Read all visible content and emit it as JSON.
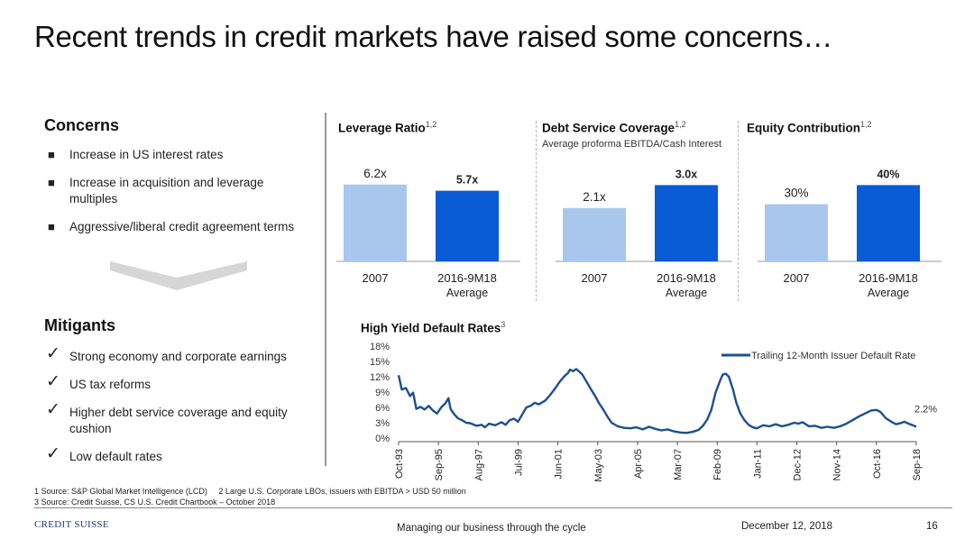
{
  "title": "Recent trends in credit markets have raised some concerns…",
  "concerns": {
    "heading": "Concerns",
    "items": [
      "Increase in US interest rates",
      "Increase in acquisition and leverage multiples",
      "Aggressive/liberal credit agreement terms"
    ]
  },
  "mitigants": {
    "heading": "Mitigants",
    "items": [
      "Strong economy and corporate earnings",
      "US tax reforms",
      "Higher debt service coverage and equity cushion",
      "Low default rates"
    ]
  },
  "colors": {
    "light_bar": "#a9c6ec",
    "dark_bar": "#0a5bd6",
    "line": "#1d4f91"
  },
  "chart_data": [
    {
      "type": "bar",
      "title": "Leverage Ratio",
      "title_sup": "1,2",
      "subtitle": "",
      "categories": [
        "2007",
        "2016-9M18"
      ],
      "category_sublabels": [
        "",
        "Average"
      ],
      "values": [
        6.2,
        5.7
      ],
      "value_labels": [
        "6.2x",
        "5.7x"
      ],
      "ylim": [
        0,
        8.0
      ]
    },
    {
      "type": "bar",
      "title": "Debt Service Coverage",
      "title_sup": "1,2",
      "subtitle": "Average proforma EBITDA/Cash Interest",
      "categories": [
        "2007",
        "2016-9M18"
      ],
      "category_sublabels": [
        "",
        "Average"
      ],
      "values": [
        2.1,
        3.0
      ],
      "value_labels": [
        "2.1x",
        "3.0x"
      ],
      "ylim": [
        0,
        3.9
      ]
    },
    {
      "type": "bar",
      "title": "Equity Contribution",
      "title_sup": "1,2",
      "subtitle": "",
      "categories": [
        "2007",
        "2016-9M18"
      ],
      "category_sublabels": [
        "",
        "Average"
      ],
      "values": [
        30,
        40
      ],
      "value_labels": [
        "30%",
        "40%"
      ],
      "ylim": [
        0,
        52
      ]
    },
    {
      "type": "line",
      "title": "High Yield Default Rates",
      "title_sup": "3",
      "yticks": [
        "0%",
        "3%",
        "6%",
        "9%",
        "12%",
        "15%",
        "18%"
      ],
      "ylim": [
        0,
        18
      ],
      "xticks": [
        "Oct-93",
        "Sep-95",
        "Aug-97",
        "Jul-99",
        "Jun-01",
        "May-03",
        "Apr-05",
        "Mar-07",
        "Feb-09",
        "Jan-11",
        "Dec-12",
        "Nov-14",
        "Oct-16",
        "Sep-18"
      ],
      "xlim": [
        1993.75,
        2018.67
      ],
      "series": [
        {
          "name": "Trailing 12-Month Issuer Default Rate",
          "end_label": "2.2%",
          "points": [
            [
              1993.75,
              12.3
            ],
            [
              1993.9,
              9.5
            ],
            [
              1994.1,
              9.8
            ],
            [
              1994.3,
              8.2
            ],
            [
              1994.45,
              8.9
            ],
            [
              1994.6,
              5.7
            ],
            [
              1994.8,
              6.1
            ],
            [
              1995.0,
              5.6
            ],
            [
              1995.2,
              6.3
            ],
            [
              1995.4,
              5.4
            ],
            [
              1995.6,
              4.8
            ],
            [
              1995.8,
              6.0
            ],
            [
              1996.0,
              6.8
            ],
            [
              1996.15,
              7.8
            ],
            [
              1996.25,
              5.7
            ],
            [
              1996.4,
              4.8
            ],
            [
              1996.6,
              3.9
            ],
            [
              1996.8,
              3.5
            ],
            [
              1997.0,
              3.0
            ],
            [
              1997.2,
              2.9
            ],
            [
              1997.5,
              2.4
            ],
            [
              1997.75,
              2.6
            ],
            [
              1997.9,
              2.1
            ],
            [
              1998.1,
              2.8
            ],
            [
              1998.4,
              2.5
            ],
            [
              1998.7,
              3.1
            ],
            [
              1998.9,
              2.6
            ],
            [
              1999.1,
              3.5
            ],
            [
              1999.3,
              3.8
            ],
            [
              1999.5,
              3.2
            ],
            [
              1999.7,
              4.6
            ],
            [
              1999.9,
              6.0
            ],
            [
              2000.1,
              6.3
            ],
            [
              2000.3,
              6.9
            ],
            [
              2000.5,
              6.6
            ],
            [
              2000.8,
              7.3
            ],
            [
              2001.0,
              8.2
            ],
            [
              2001.3,
              9.8
            ],
            [
              2001.5,
              11.0
            ],
            [
              2001.75,
              12.2
            ],
            [
              2001.9,
              12.7
            ],
            [
              2002.0,
              13.4
            ],
            [
              2002.15,
              13.1
            ],
            [
              2002.3,
              13.5
            ],
            [
              2002.45,
              13.0
            ],
            [
              2002.6,
              12.4
            ],
            [
              2002.8,
              11.0
            ],
            [
              2003.0,
              9.6
            ],
            [
              2003.2,
              8.3
            ],
            [
              2003.4,
              6.8
            ],
            [
              2003.6,
              5.6
            ],
            [
              2003.8,
              4.2
            ],
            [
              2004.0,
              3.0
            ],
            [
              2004.3,
              2.3
            ],
            [
              2004.6,
              2.0
            ],
            [
              2004.9,
              1.9
            ],
            [
              2005.2,
              2.1
            ],
            [
              2005.5,
              1.7
            ],
            [
              2005.8,
              2.2
            ],
            [
              2006.1,
              1.8
            ],
            [
              2006.4,
              1.5
            ],
            [
              2006.7,
              1.7
            ],
            [
              2007.0,
              1.3
            ],
            [
              2007.3,
              1.1
            ],
            [
              2007.6,
              1.0
            ],
            [
              2007.9,
              1.2
            ],
            [
              2008.2,
              1.6
            ],
            [
              2008.4,
              2.4
            ],
            [
              2008.6,
              3.6
            ],
            [
              2008.8,
              5.5
            ],
            [
              2009.0,
              8.8
            ],
            [
              2009.2,
              11.0
            ],
            [
              2009.35,
              12.4
            ],
            [
              2009.5,
              12.6
            ],
            [
              2009.65,
              12.0
            ],
            [
              2009.85,
              9.5
            ],
            [
              2010.0,
              7.0
            ],
            [
              2010.2,
              4.8
            ],
            [
              2010.4,
              3.5
            ],
            [
              2010.6,
              2.6
            ],
            [
              2010.8,
              2.1
            ],
            [
              2011.0,
              1.9
            ],
            [
              2011.3,
              2.5
            ],
            [
              2011.6,
              2.3
            ],
            [
              2011.9,
              2.7
            ],
            [
              2012.2,
              2.3
            ],
            [
              2012.5,
              2.6
            ],
            [
              2012.8,
              3.0
            ],
            [
              2013.0,
              2.8
            ],
            [
              2013.2,
              3.1
            ],
            [
              2013.5,
              2.3
            ],
            [
              2013.8,
              2.4
            ],
            [
              2014.1,
              2.0
            ],
            [
              2014.4,
              2.2
            ],
            [
              2014.7,
              2.0
            ],
            [
              2015.0,
              2.3
            ],
            [
              2015.3,
              2.8
            ],
            [
              2015.6,
              3.5
            ],
            [
              2015.9,
              4.2
            ],
            [
              2016.2,
              4.8
            ],
            [
              2016.5,
              5.4
            ],
            [
              2016.75,
              5.5
            ],
            [
              2016.95,
              5.1
            ],
            [
              2017.2,
              3.9
            ],
            [
              2017.5,
              3.1
            ],
            [
              2017.7,
              2.7
            ],
            [
              2017.9,
              2.9
            ],
            [
              2018.1,
              3.2
            ],
            [
              2018.3,
              2.8
            ],
            [
              2018.5,
              2.5
            ],
            [
              2018.67,
              2.2
            ]
          ]
        }
      ]
    }
  ],
  "footnotes": {
    "line1": "1 Source: S&P Global Market Intelligence (LCD)     2 Large U.S. Corporate LBOs, issuers with EBITDA > USD 50 million",
    "line2": "3 Source: Credit Suisse, CS U.S. Credit Chartbook – October 2018"
  },
  "footer": {
    "logo_text": "CREDIT SUISSE",
    "center": "Managing our business through the cycle",
    "date": "December 12, 2018",
    "page": "16"
  }
}
